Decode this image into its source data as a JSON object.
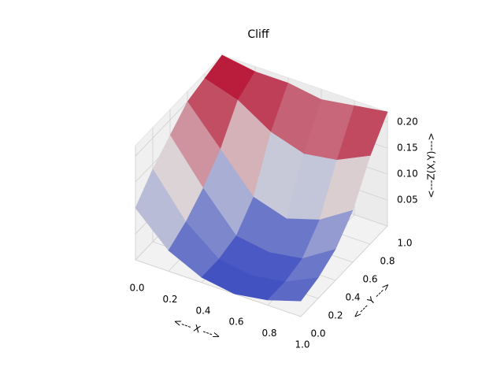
{
  "chart_data": {
    "type": "surface3d",
    "title": "Cliff",
    "xlabel": "<--- X --->",
    "ylabel": "<--- Y --->",
    "zlabel": "<---Z(X,Y)--->",
    "x": [
      0,
      0.2,
      0.4,
      0.6,
      0.8,
      1
    ],
    "y": [
      0,
      0.2,
      0.4,
      0.6,
      0.8,
      1
    ],
    "z": [
      [
        0.1,
        0.04,
        0.01,
        0.0,
        0.01,
        0.03
      ],
      [
        0.14,
        0.06,
        0.01,
        0.0,
        0.01,
        0.04
      ],
      [
        0.17,
        0.09,
        0.02,
        0.01,
        0.02,
        0.06
      ],
      [
        0.2,
        0.13,
        0.06,
        0.04,
        0.06,
        0.1
      ],
      [
        0.21,
        0.19,
        0.15,
        0.13,
        0.14,
        0.17
      ],
      [
        0.22,
        0.21,
        0.21,
        0.2,
        0.21,
        0.22
      ]
    ],
    "colormap": [
      "#3b4cc0",
      "#dddddd",
      "#b40426"
    ],
    "xlim": [
      0,
      1
    ],
    "ylim": [
      0,
      1
    ],
    "zlim": [
      0,
      0.22
    ],
    "xticks": [
      {
        "value": 0,
        "label": "0.0"
      },
      0.2,
      0.4,
      0.6,
      0.8,
      {
        "value": 1,
        "label": "1.0"
      }
    ],
    "yticks": [
      {
        "value": 0,
        "label": "0.0"
      },
      0.2,
      0.4,
      0.6,
      0.8,
      {
        "value": 1,
        "label": "1.0"
      }
    ],
    "zticks": [
      0.05,
      {
        "value": 0.1,
        "label": "0.10"
      },
      0.15,
      {
        "value": 0.2,
        "label": "0.20"
      }
    ],
    "grid": true
  }
}
